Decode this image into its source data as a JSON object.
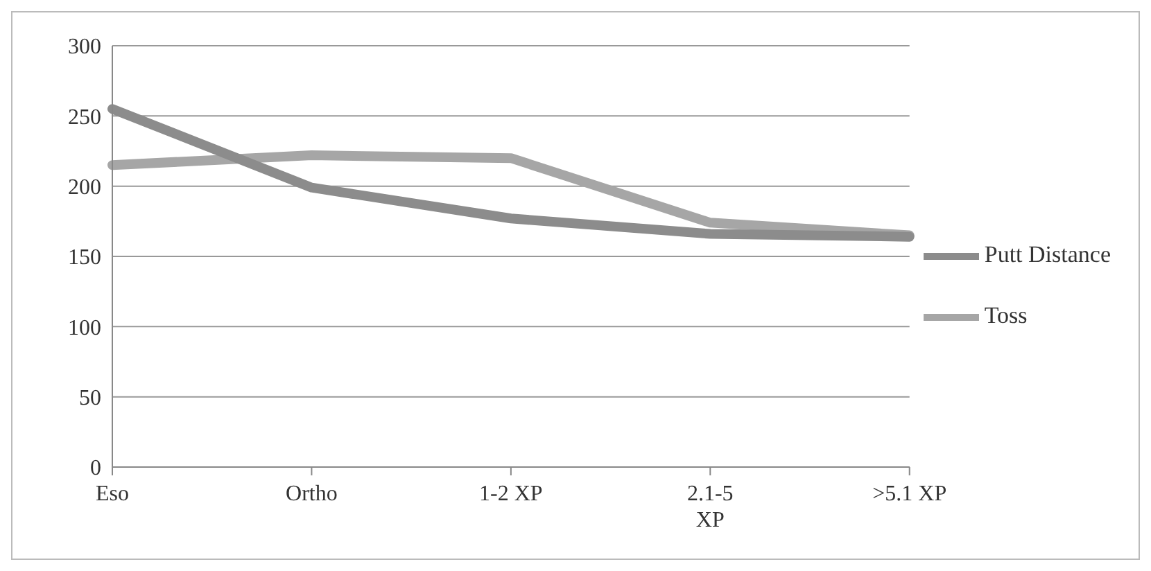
{
  "chart_data": {
    "type": "line",
    "categories": [
      "Eso",
      "Ortho",
      "1-2 XP",
      "2.1-5 XP",
      ">5.1 XP"
    ],
    "series": [
      {
        "name": "Toss",
        "color": "#a6a6a6",
        "values": [
          215,
          222,
          220,
          174,
          165
        ]
      },
      {
        "name": "Putt Distance",
        "color": "#8c8c8c",
        "values": [
          255,
          199,
          177,
          166,
          164
        ]
      }
    ],
    "ylim": [
      0,
      300
    ],
    "yticks": [
      0,
      50,
      100,
      150,
      200,
      250,
      300
    ],
    "grid": "y",
    "legend": "right",
    "marker": "none",
    "line_style": "solid"
  }
}
